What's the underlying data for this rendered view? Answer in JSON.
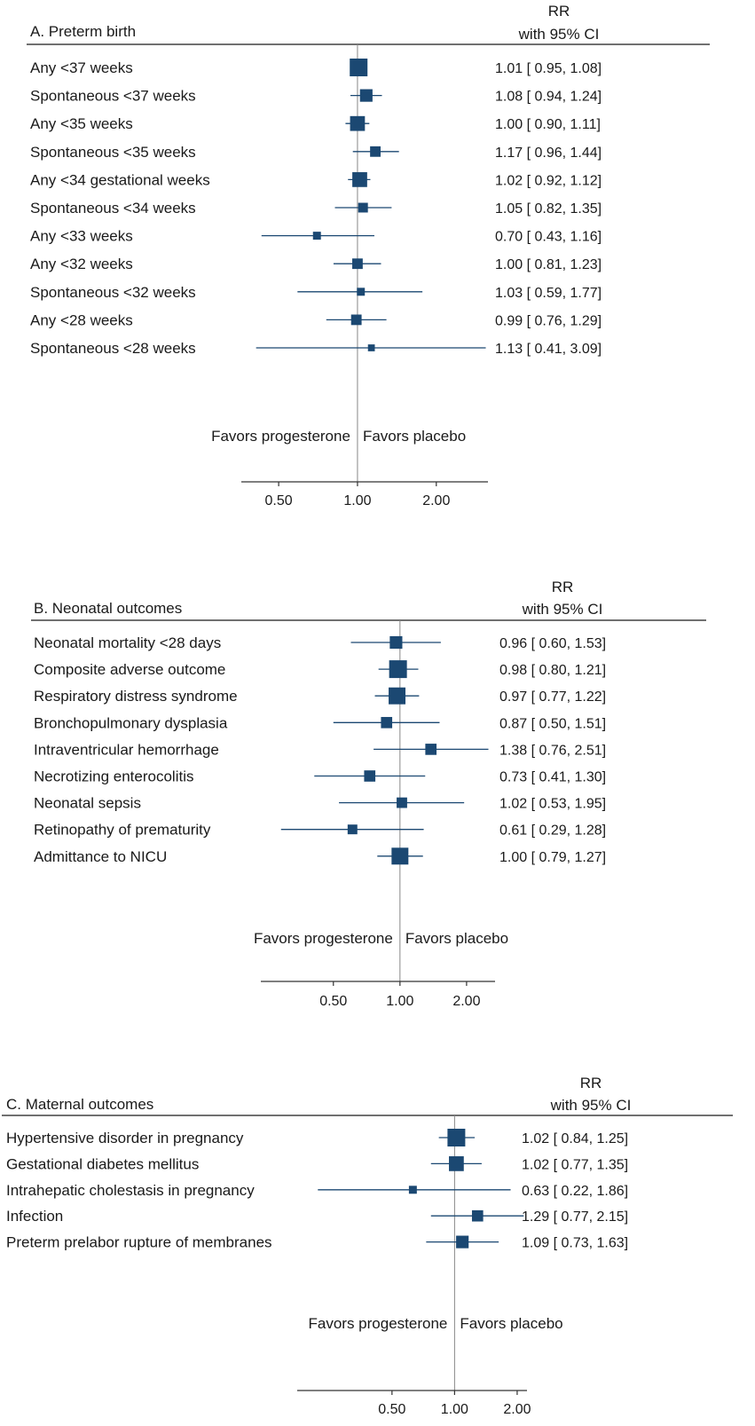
{
  "chart_data": [
    {
      "type": "forest",
      "title": "A. Preterm birth",
      "header": [
        "RR",
        "with 95% CI"
      ],
      "scale": "log",
      "null_value": 1.0,
      "xlim": [
        0.36,
        3.15
      ],
      "ticks": [
        0.5,
        1.0,
        2.0
      ],
      "tick_labels": [
        "0.50",
        "1.00",
        "2.00"
      ],
      "favors_left": "Favors progesterone",
      "favors_right": "Favors placebo",
      "rows": [
        {
          "label": "Any <37 weeks",
          "rr": 1.01,
          "lo": 0.95,
          "hi": 1.08,
          "weight": 20,
          "ci_text": "1.01 [ 0.95,  1.08]"
        },
        {
          "label": "Spontaneous <37 weeks",
          "rr": 1.08,
          "lo": 0.94,
          "hi": 1.24,
          "weight": 10,
          "ci_text": "1.08 [ 0.94,  1.24]"
        },
        {
          "label": "Any <35 weeks",
          "rr": 1.0,
          "lo": 0.9,
          "hi": 1.11,
          "weight": 14,
          "ci_text": "1.00 [ 0.90,  1.11]"
        },
        {
          "label": "Spontaneous <35 weeks",
          "rr": 1.17,
          "lo": 0.96,
          "hi": 1.44,
          "weight": 7,
          "ci_text": "1.17 [ 0.96,  1.44]"
        },
        {
          "label": "Any <34 gestational weeks",
          "rr": 1.02,
          "lo": 0.92,
          "hi": 1.12,
          "weight": 14,
          "ci_text": "1.02 [ 0.92,  1.12]"
        },
        {
          "label": "Spontaneous <34 weeks",
          "rr": 1.05,
          "lo": 0.82,
          "hi": 1.35,
          "weight": 6,
          "ci_text": "1.05 [ 0.82,  1.35]"
        },
        {
          "label": "Any <33 weeks",
          "rr": 0.7,
          "lo": 0.43,
          "hi": 1.16,
          "weight": 4,
          "ci_text": "0.70 [ 0.43,  1.16]"
        },
        {
          "label": "Any <32 weeks",
          "rr": 1.0,
          "lo": 0.81,
          "hi": 1.23,
          "weight": 7,
          "ci_text": "1.00 [ 0.81,  1.23]"
        },
        {
          "label": "Spontaneous <32 weeks",
          "rr": 1.03,
          "lo": 0.59,
          "hi": 1.77,
          "weight": 4,
          "ci_text": "1.03 [ 0.59,  1.77]"
        },
        {
          "label": "Any <28 weeks",
          "rr": 0.99,
          "lo": 0.76,
          "hi": 1.29,
          "weight": 7,
          "ci_text": "0.99 [ 0.76,  1.29]"
        },
        {
          "label": "Spontaneous <28 weeks",
          "rr": 1.13,
          "lo": 0.41,
          "hi": 3.09,
          "weight": 3,
          "ci_text": "1.13 [ 0.41,  3.09]"
        }
      ]
    },
    {
      "type": "forest",
      "title": "B. Neonatal outcomes",
      "header": [
        "RR",
        "with 95% CI"
      ],
      "scale": "log",
      "null_value": 1.0,
      "xlim": [
        0.235,
        2.69
      ],
      "ticks": [
        0.5,
        1.0,
        2.0
      ],
      "tick_labels": [
        "0.50",
        "1.00",
        "2.00"
      ],
      "favors_left": "Favors progesterone",
      "favors_right": "Favors placebo",
      "rows": [
        {
          "label": "Neonatal mortality <28 days",
          "rr": 0.96,
          "lo": 0.6,
          "hi": 1.53,
          "weight": 10,
          "ci_text": "0.96 [ 0.60,  1.53]"
        },
        {
          "label": "Composite adverse outcome",
          "rr": 0.98,
          "lo": 0.8,
          "hi": 1.21,
          "weight": 20,
          "ci_text": "0.98 [ 0.80,  1.21]"
        },
        {
          "label": "Respiratory distress syndrome",
          "rr": 0.97,
          "lo": 0.77,
          "hi": 1.22,
          "weight": 18,
          "ci_text": "0.97 [ 0.77,  1.22]"
        },
        {
          "label": "Bronchopulmonary dysplasia",
          "rr": 0.87,
          "lo": 0.5,
          "hi": 1.51,
          "weight": 8,
          "ci_text": "0.87 [ 0.50,  1.51]"
        },
        {
          "label": "Intraventricular hemorrhage",
          "rr": 1.38,
          "lo": 0.76,
          "hi": 2.51,
          "weight": 8,
          "ci_text": "1.38 [ 0.76,  2.51]"
        },
        {
          "label": "Necrotizing enterocolitis",
          "rr": 0.73,
          "lo": 0.41,
          "hi": 1.3,
          "weight": 8,
          "ci_text": "0.73 [ 0.41,  1.30]"
        },
        {
          "label": "Neonatal sepsis",
          "rr": 1.02,
          "lo": 0.53,
          "hi": 1.95,
          "weight": 7,
          "ci_text": "1.02 [ 0.53,  1.95]"
        },
        {
          "label": "Retinopathy of prematurity",
          "rr": 0.61,
          "lo": 0.29,
          "hi": 1.28,
          "weight": 6,
          "ci_text": "0.61 [ 0.29,  1.28]"
        },
        {
          "label": "Admittance to NICU",
          "rr": 1.0,
          "lo": 0.79,
          "hi": 1.27,
          "weight": 18,
          "ci_text": "1.00 [ 0.79,  1.27]"
        }
      ]
    },
    {
      "type": "forest",
      "title": "C. Maternal outcomes",
      "header": [
        "RR",
        "with 95% CI"
      ],
      "scale": "log",
      "null_value": 1.0,
      "xlim": [
        0.175,
        2.23
      ],
      "ticks": [
        0.5,
        1.0,
        2.0
      ],
      "tick_labels": [
        "0.50",
        "1.00",
        "2.00"
      ],
      "favors_left": "Favors progesterone",
      "favors_right": "Favors placebo",
      "rows": [
        {
          "label": "Hypertensive disorder in pregnancy",
          "rr": 1.02,
          "lo": 0.84,
          "hi": 1.25,
          "weight": 20,
          "ci_text": "1.02 [ 0.84,  1.25]"
        },
        {
          "label": "Gestational diabetes mellitus",
          "rr": 1.02,
          "lo": 0.77,
          "hi": 1.35,
          "weight": 14,
          "ci_text": "1.02 [ 0.77,  1.35]"
        },
        {
          "label": "Intrahepatic cholestasis in pregnancy",
          "rr": 0.63,
          "lo": 0.22,
          "hi": 1.86,
          "weight": 4,
          "ci_text": "0.63 [ 0.22,  1.86]"
        },
        {
          "label": "Infection",
          "rr": 1.29,
          "lo": 0.77,
          "hi": 2.15,
          "weight": 8,
          "ci_text": "1.29 [ 0.77,  2.15]"
        },
        {
          "label": "Preterm prelabor rupture of membranes",
          "rr": 1.09,
          "lo": 0.73,
          "hi": 1.63,
          "weight": 10,
          "ci_text": "1.09 [ 0.73,  1.63]"
        }
      ]
    }
  ],
  "colors": {
    "marker": "#1b4872",
    "null_line": "#888888",
    "rule": "#1a1a1a",
    "axis": "#333333"
  }
}
